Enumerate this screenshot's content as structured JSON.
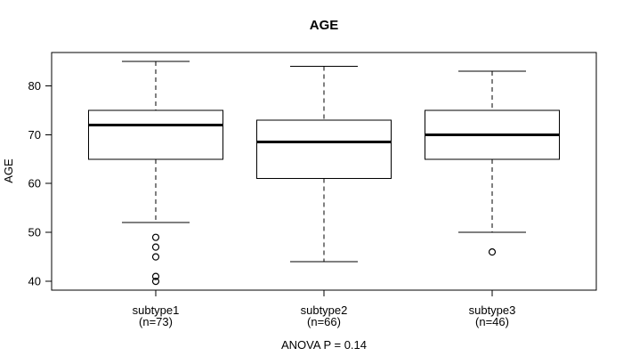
{
  "chart_data": {
    "type": "boxplot",
    "title": "AGE",
    "ylabel": "AGE",
    "xlabel": "",
    "annotation": "ANOVA P = 0.14",
    "y_ticks": [
      40,
      50,
      60,
      70,
      80
    ],
    "ylim": [
      38.2,
      86.8
    ],
    "grid": false,
    "legend": "none",
    "groups": [
      {
        "label": "subtype1",
        "sublabel": "(n=73)",
        "n": 73,
        "whisker_low": 52,
        "q1": 65,
        "median": 72,
        "q3": 75,
        "whisker_high": 85,
        "outliers": [
          49,
          47,
          45,
          41,
          40
        ]
      },
      {
        "label": "subtype2",
        "sublabel": "(n=66)",
        "n": 66,
        "whisker_low": 44,
        "q1": 61,
        "median": 68.5,
        "q3": 73,
        "whisker_high": 84,
        "outliers": []
      },
      {
        "label": "subtype3",
        "sublabel": "(n=46)",
        "n": 46,
        "whisker_low": 50,
        "q1": 65,
        "median": 70,
        "q3": 75,
        "whisker_high": 83,
        "outliers": [
          46
        ]
      }
    ]
  },
  "colors": {
    "line": "#000000",
    "box_fill": "#ffffff",
    "background": "#ffffff"
  }
}
